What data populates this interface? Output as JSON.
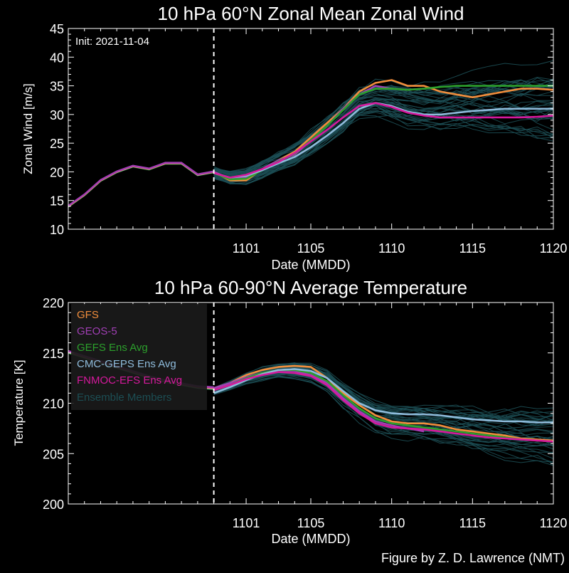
{
  "credit": "Figure by Z. D. Lawrence (NMT)",
  "chart_data": [
    {
      "type": "line",
      "title": "10 hPa  60°N   Zonal Mean Zonal Wind",
      "xlabel": "Date (MMDD)",
      "ylabel": "Zonal  Wind  [m/s]",
      "init_label": "Init: 2021-11-04",
      "ylim": [
        10,
        45
      ],
      "xlim_days": [
        -8,
        22
      ],
      "init_day": 1,
      "yticks": [
        "10",
        "15",
        "20",
        "25",
        "30",
        "35",
        "40",
        "45"
      ],
      "xticks": [
        {
          "day": 3,
          "label": "1101"
        },
        {
          "day": 7,
          "label": "1105"
        },
        {
          "day": 12,
          "label": "1110"
        },
        {
          "day": 17,
          "label": "1115"
        },
        {
          "day": 22,
          "label": "1120"
        }
      ],
      "days": [
        -8,
        -7,
        -6,
        -5,
        -4,
        -3,
        -2,
        -1,
        0,
        1,
        2,
        3,
        4,
        5,
        6,
        7,
        8,
        9,
        10,
        11,
        12,
        13,
        14,
        15,
        16,
        17,
        18,
        19,
        20,
        21,
        22
      ],
      "analysis": [
        14.0,
        16.0,
        18.5,
        20.0,
        21.0,
        20.5,
        21.5,
        21.5,
        19.5,
        20.0
      ],
      "series": [
        {
          "name": "GFS",
          "color": "#f28e3c",
          "start_day": 1,
          "values": [
            20.0,
            18.5,
            18.5,
            20.5,
            22.0,
            23.5,
            26.0,
            28.5,
            31.0,
            34.0,
            35.5,
            36.0,
            35.0,
            35.0,
            34.0,
            33.5,
            33.0,
            33.5,
            34.0,
            34.5,
            34.5,
            34.3
          ]
        },
        {
          "name": "GEOS-5",
          "color": "#a13fb5",
          "start_day": 1,
          "values": [
            20.0,
            18.8,
            19.0,
            20.5,
            22.0,
            23.0,
            25.5,
            28.0,
            31.0,
            33.5,
            35.0,
            34.5,
            34.3,
            34.5
          ]
        },
        {
          "name": "GEFS Ens Avg",
          "color": "#2ca02c",
          "start_day": 1,
          "values": [
            19.8,
            18.7,
            18.8,
            20.3,
            21.8,
            23.2,
            25.5,
            28.0,
            30.8,
            33.5,
            34.5,
            34.5,
            34.3,
            34.5,
            34.8,
            35.0,
            35.0,
            35.0,
            35.0,
            35.0,
            35.0,
            35.0
          ]
        },
        {
          "name": "CMC-GEPS Ens Avg",
          "color": "#8fbcdc",
          "start_day": 1,
          "values": [
            19.8,
            19.0,
            19.3,
            20.3,
            21.5,
            22.6,
            24.3,
            26.3,
            28.5,
            31.0,
            32.0,
            31.5,
            30.5,
            30.0,
            30.0,
            30.3,
            30.6,
            30.8,
            31.0,
            31.0,
            31.0,
            31.0
          ]
        },
        {
          "name": "FNMOC-EFS Ens Avg",
          "color": "#d6199d",
          "start_day": 1,
          "values": [
            19.8,
            19.0,
            19.5,
            20.5,
            21.7,
            23.3,
            25.3,
            27.3,
            29.5,
            31.5,
            32.0,
            31.3,
            30.3,
            29.8,
            29.5,
            29.5,
            29.5,
            29.5,
            29.5,
            29.5,
            29.6,
            29.8
          ]
        }
      ],
      "ensemble": {
        "name": "Ensemble Members",
        "color": "#1c4e54",
        "count": 40,
        "spread_start": 1.2,
        "spread_end": 5.0
      }
    },
    {
      "type": "line",
      "title": "10 hPa  60-90°N Average Temperature",
      "xlabel": "Date (MMDD)",
      "ylabel": "Temperature  [K]",
      "ylim": [
        200,
        220
      ],
      "xlim_days": [
        -8,
        22
      ],
      "init_day": 1,
      "yticks": [
        "200",
        "205",
        "210",
        "215",
        "220"
      ],
      "xticks": [
        {
          "day": 3,
          "label": "1101"
        },
        {
          "day": 7,
          "label": "1105"
        },
        {
          "day": 12,
          "label": "1110"
        },
        {
          "day": 17,
          "label": "1115"
        },
        {
          "day": 22,
          "label": "1120"
        }
      ],
      "days": [
        -8,
        -7,
        -6,
        -5,
        -4,
        -3,
        -2,
        -1,
        0,
        1,
        2,
        3,
        4,
        5,
        6,
        7,
        8,
        9,
        10,
        11,
        12,
        13,
        14,
        15,
        16,
        17,
        18,
        19,
        20,
        21,
        22
      ],
      "analysis": [
        215.1,
        214.6,
        214.1,
        213.6,
        213.1,
        212.6,
        212.2,
        211.9,
        211.6,
        211.5
      ],
      "series": [
        {
          "name": "GFS",
          "color": "#f28e3c",
          "start_day": 1,
          "values": [
            211.5,
            212.0,
            212.8,
            213.3,
            213.6,
            213.7,
            213.6,
            212.5,
            211.0,
            209.8,
            208.8,
            208.2,
            208.0,
            208.0,
            207.8,
            207.4,
            207.2,
            207.0,
            206.8,
            206.5,
            206.4,
            206.3
          ]
        },
        {
          "name": "GEOS-5",
          "color": "#a13fb5",
          "start_day": 1,
          "values": [
            211.5,
            212.0,
            212.6,
            213.0,
            213.3,
            213.2,
            212.8,
            212.0,
            210.5,
            209.2,
            208.2,
            207.8,
            207.5,
            207.2
          ]
        },
        {
          "name": "GEFS Ens Avg",
          "color": "#2ca02c",
          "start_day": 1,
          "values": [
            211.3,
            211.8,
            212.5,
            213.0,
            213.3,
            213.3,
            213.0,
            212.2,
            210.8,
            209.5,
            208.5,
            208.0,
            207.8,
            207.6,
            207.4,
            207.2,
            207.0,
            206.8,
            206.6,
            206.4,
            206.3,
            206.2
          ]
        },
        {
          "name": "CMC-GEPS Ens Avg",
          "color": "#8fbcdc",
          "start_day": 1,
          "values": [
            211.0,
            211.6,
            212.3,
            212.9,
            213.3,
            213.4,
            213.2,
            212.5,
            211.2,
            210.0,
            209.3,
            209.0,
            208.9,
            208.9,
            208.8,
            208.6,
            208.4,
            208.3,
            208.2,
            208.2,
            208.1,
            208.1
          ]
        },
        {
          "name": "FNMOC-EFS Ens Avg",
          "color": "#d6199d",
          "start_day": 1,
          "values": [
            211.3,
            211.8,
            212.4,
            212.8,
            213.1,
            213.0,
            212.7,
            211.8,
            210.3,
            209.0,
            208.0,
            207.6,
            207.5,
            207.4,
            207.2,
            207.0,
            206.8,
            206.6,
            206.5,
            206.4,
            206.3,
            206.2
          ]
        }
      ],
      "ensemble": {
        "name": "Ensemble Members",
        "color": "#1c4e54",
        "count": 40,
        "spread_start": 0.4,
        "spread_end": 2.5
      },
      "legend": {
        "placement": "upper-left",
        "entries": [
          {
            "label": "GFS",
            "color": "#f28e3c"
          },
          {
            "label": "GEOS-5",
            "color": "#a13fb5"
          },
          {
            "label": "GEFS Ens Avg",
            "color": "#2ca02c"
          },
          {
            "label": "CMC-GEPS Ens Avg",
            "color": "#8fbcdc"
          },
          {
            "label": "FNMOC-EFS Ens Avg",
            "color": "#d6199d"
          },
          {
            "label": "Ensemble Members",
            "color": "#1c4e54"
          }
        ]
      }
    }
  ]
}
